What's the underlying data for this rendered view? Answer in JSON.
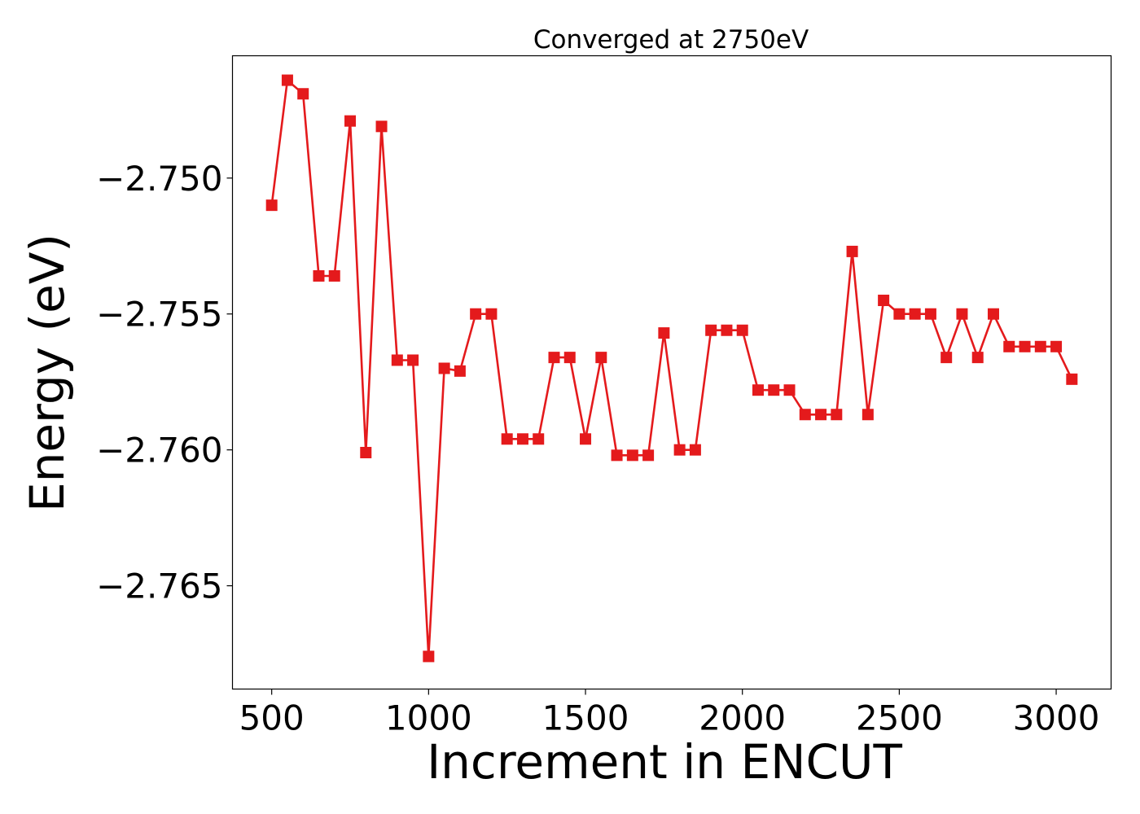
{
  "chart_data": {
    "type": "line",
    "title": "Converged at 2750eV",
    "xlabel": "Increment in ENCUT",
    "ylabel": "Energy (eV)",
    "xlim": [
      375,
      3175
    ],
    "ylim": [
      -2.7688,
      -2.7455
    ],
    "xticks": [
      500,
      1000,
      1500,
      2000,
      2500,
      3000
    ],
    "xtick_labels": [
      "500",
      "1000",
      "1500",
      "2000",
      "2500",
      "3000"
    ],
    "yticks": [
      -2.75,
      -2.755,
      -2.76,
      -2.765
    ],
    "ytick_labels": [
      "−2.750",
      "−2.755",
      "−2.760",
      "−2.765"
    ],
    "grid": false,
    "color": "#e41a1c",
    "marker": "square",
    "x": [
      500,
      550,
      600,
      650,
      700,
      750,
      800,
      850,
      900,
      950,
      1000,
      1050,
      1100,
      1150,
      1200,
      1250,
      1300,
      1350,
      1400,
      1450,
      1500,
      1550,
      1600,
      1650,
      1700,
      1750,
      1800,
      1850,
      1900,
      1950,
      2000,
      2050,
      2100,
      2150,
      2200,
      2250,
      2300,
      2350,
      2400,
      2450,
      2500,
      2550,
      2600,
      2650,
      2700,
      2750,
      2800,
      2850,
      2900,
      2950,
      3000,
      3050
    ],
    "y": [
      -2.751,
      -2.7464,
      -2.7469,
      -2.7536,
      -2.7536,
      -2.7479,
      -2.7601,
      -2.7481,
      -2.7567,
      -2.7567,
      -2.7676,
      -2.757,
      -2.7571,
      -2.755,
      -2.755,
      -2.7596,
      -2.7596,
      -2.7596,
      -2.7566,
      -2.7566,
      -2.7596,
      -2.7566,
      -2.7602,
      -2.7602,
      -2.7602,
      -2.7557,
      -2.76,
      -2.76,
      -2.7556,
      -2.7556,
      -2.7556,
      -2.7578,
      -2.7578,
      -2.7578,
      -2.7587,
      -2.7587,
      -2.7587,
      -2.7527,
      -2.7587,
      -2.7545,
      -2.755,
      -2.755,
      -2.755,
      -2.7566,
      -2.755,
      -2.7566,
      -2.755,
      -2.7562,
      -2.7562,
      -2.7562,
      -2.7562,
      -2.7574
    ]
  }
}
